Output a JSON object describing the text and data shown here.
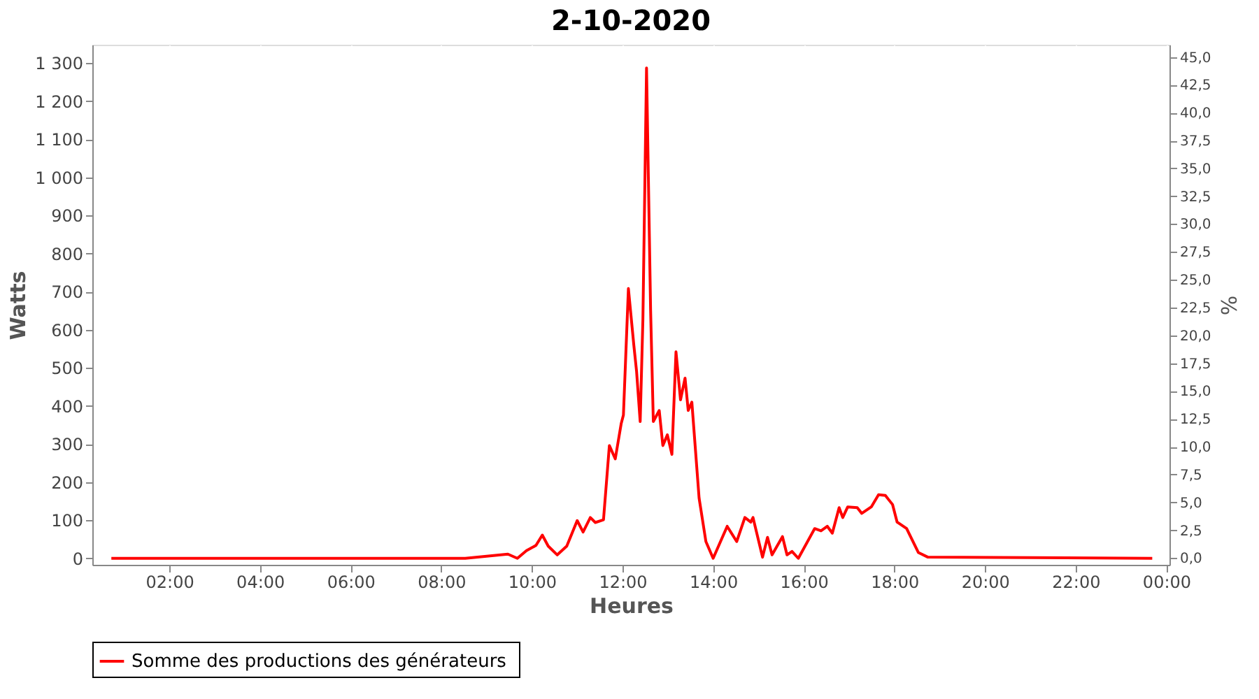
{
  "chart_data": {
    "type": "line",
    "title": "2-10-2020",
    "xlabel": "Heures",
    "ylabel": "Watts",
    "y2label": "%",
    "xlim": [
      0.3,
      24.07
    ],
    "ylim": [
      -17,
      1348
    ],
    "y2lim": [
      -0.6,
      46.1
    ],
    "xticks": [
      {
        "value": 2,
        "label": "02:00"
      },
      {
        "value": 4,
        "label": "04:00"
      },
      {
        "value": 6,
        "label": "06:00"
      },
      {
        "value": 8,
        "label": "08:00"
      },
      {
        "value": 10,
        "label": "10:00"
      },
      {
        "value": 12,
        "label": "12:00"
      },
      {
        "value": 14,
        "label": "14:00"
      },
      {
        "value": 16,
        "label": "16:00"
      },
      {
        "value": 18,
        "label": "18:00"
      },
      {
        "value": 20,
        "label": "20:00"
      },
      {
        "value": 22,
        "label": "22:00"
      },
      {
        "value": 24,
        "label": "00:00"
      }
    ],
    "yticks": [
      0,
      100,
      200,
      300,
      400,
      500,
      600,
      700,
      800,
      900,
      {
        "value": 1000,
        "label": "1 000"
      },
      {
        "value": 1100,
        "label": "1 100"
      },
      {
        "value": 1200,
        "label": "1 200"
      },
      {
        "value": 1300,
        "label": "1 300"
      }
    ],
    "y2ticks": [
      {
        "value": 0,
        "label": "0,0"
      },
      {
        "value": 2.5,
        "label": "2,5"
      },
      {
        "value": 5,
        "label": "5,0"
      },
      {
        "value": 7.5,
        "label": "7,5"
      },
      {
        "value": 10,
        "label": "10,0"
      },
      {
        "value": 12.5,
        "label": "12,5"
      },
      {
        "value": 15,
        "label": "15,0"
      },
      {
        "value": 17.5,
        "label": "17,5"
      },
      {
        "value": 20,
        "label": "20,0"
      },
      {
        "value": 22.5,
        "label": "22,5"
      },
      {
        "value": 25,
        "label": "25,0"
      },
      {
        "value": 27.5,
        "label": "27,5"
      },
      {
        "value": 30,
        "label": "30,0"
      },
      {
        "value": 32.5,
        "label": "32,5"
      },
      {
        "value": 35,
        "label": "35,0"
      },
      {
        "value": 37.5,
        "label": "37,5"
      },
      {
        "value": 40,
        "label": "40,0"
      },
      {
        "value": 42.5,
        "label": "42,5"
      },
      {
        "value": 45,
        "label": "45,0"
      }
    ],
    "grid": true,
    "legend": "bottom",
    "marker": "none",
    "line_style": "solid",
    "series": [
      {
        "name": "Somme des productions des  générateurs",
        "color": "#ff0000",
        "x": [
          0.72,
          8.53,
          9.47,
          9.68,
          9.88,
          10.09,
          10.23,
          10.36,
          10.56,
          10.77,
          11.0,
          11.13,
          11.29,
          11.4,
          11.58,
          11.71,
          11.84,
          11.97,
          12.02,
          12.13,
          12.25,
          12.31,
          12.39,
          12.45,
          12.53,
          12.62,
          12.68,
          12.81,
          12.89,
          12.99,
          13.09,
          13.18,
          13.28,
          13.38,
          13.45,
          13.53,
          13.69,
          13.84,
          14.0,
          14.31,
          14.52,
          14.7,
          14.83,
          14.88,
          15.09,
          15.2,
          15.3,
          15.53,
          15.63,
          15.74,
          15.88,
          16.24,
          16.38,
          16.52,
          16.63,
          16.78,
          16.86,
          16.97,
          17.18,
          17.28,
          17.49,
          17.65,
          17.8,
          17.96,
          18.06,
          18.27,
          18.53,
          18.74,
          23.69
        ],
        "values": [
          0,
          0,
          11,
          0,
          20,
          34,
          61,
          32,
          9,
          32,
          99,
          69,
          107,
          94,
          101,
          296,
          261,
          353,
          376,
          708,
          559,
          491,
          359,
          628,
          1287,
          651,
          359,
          388,
          296,
          324,
          273,
          542,
          416,
          473,
          388,
          410,
          158,
          44,
          0,
          84,
          44,
          107,
          95,
          107,
          3,
          55,
          9,
          57,
          9,
          18,
          0,
          78,
          72,
          84,
          66,
          133,
          107,
          135,
          133,
          118,
          135,
          167,
          165,
          141,
          95,
          78,
          15,
          3,
          0
        ]
      }
    ]
  }
}
